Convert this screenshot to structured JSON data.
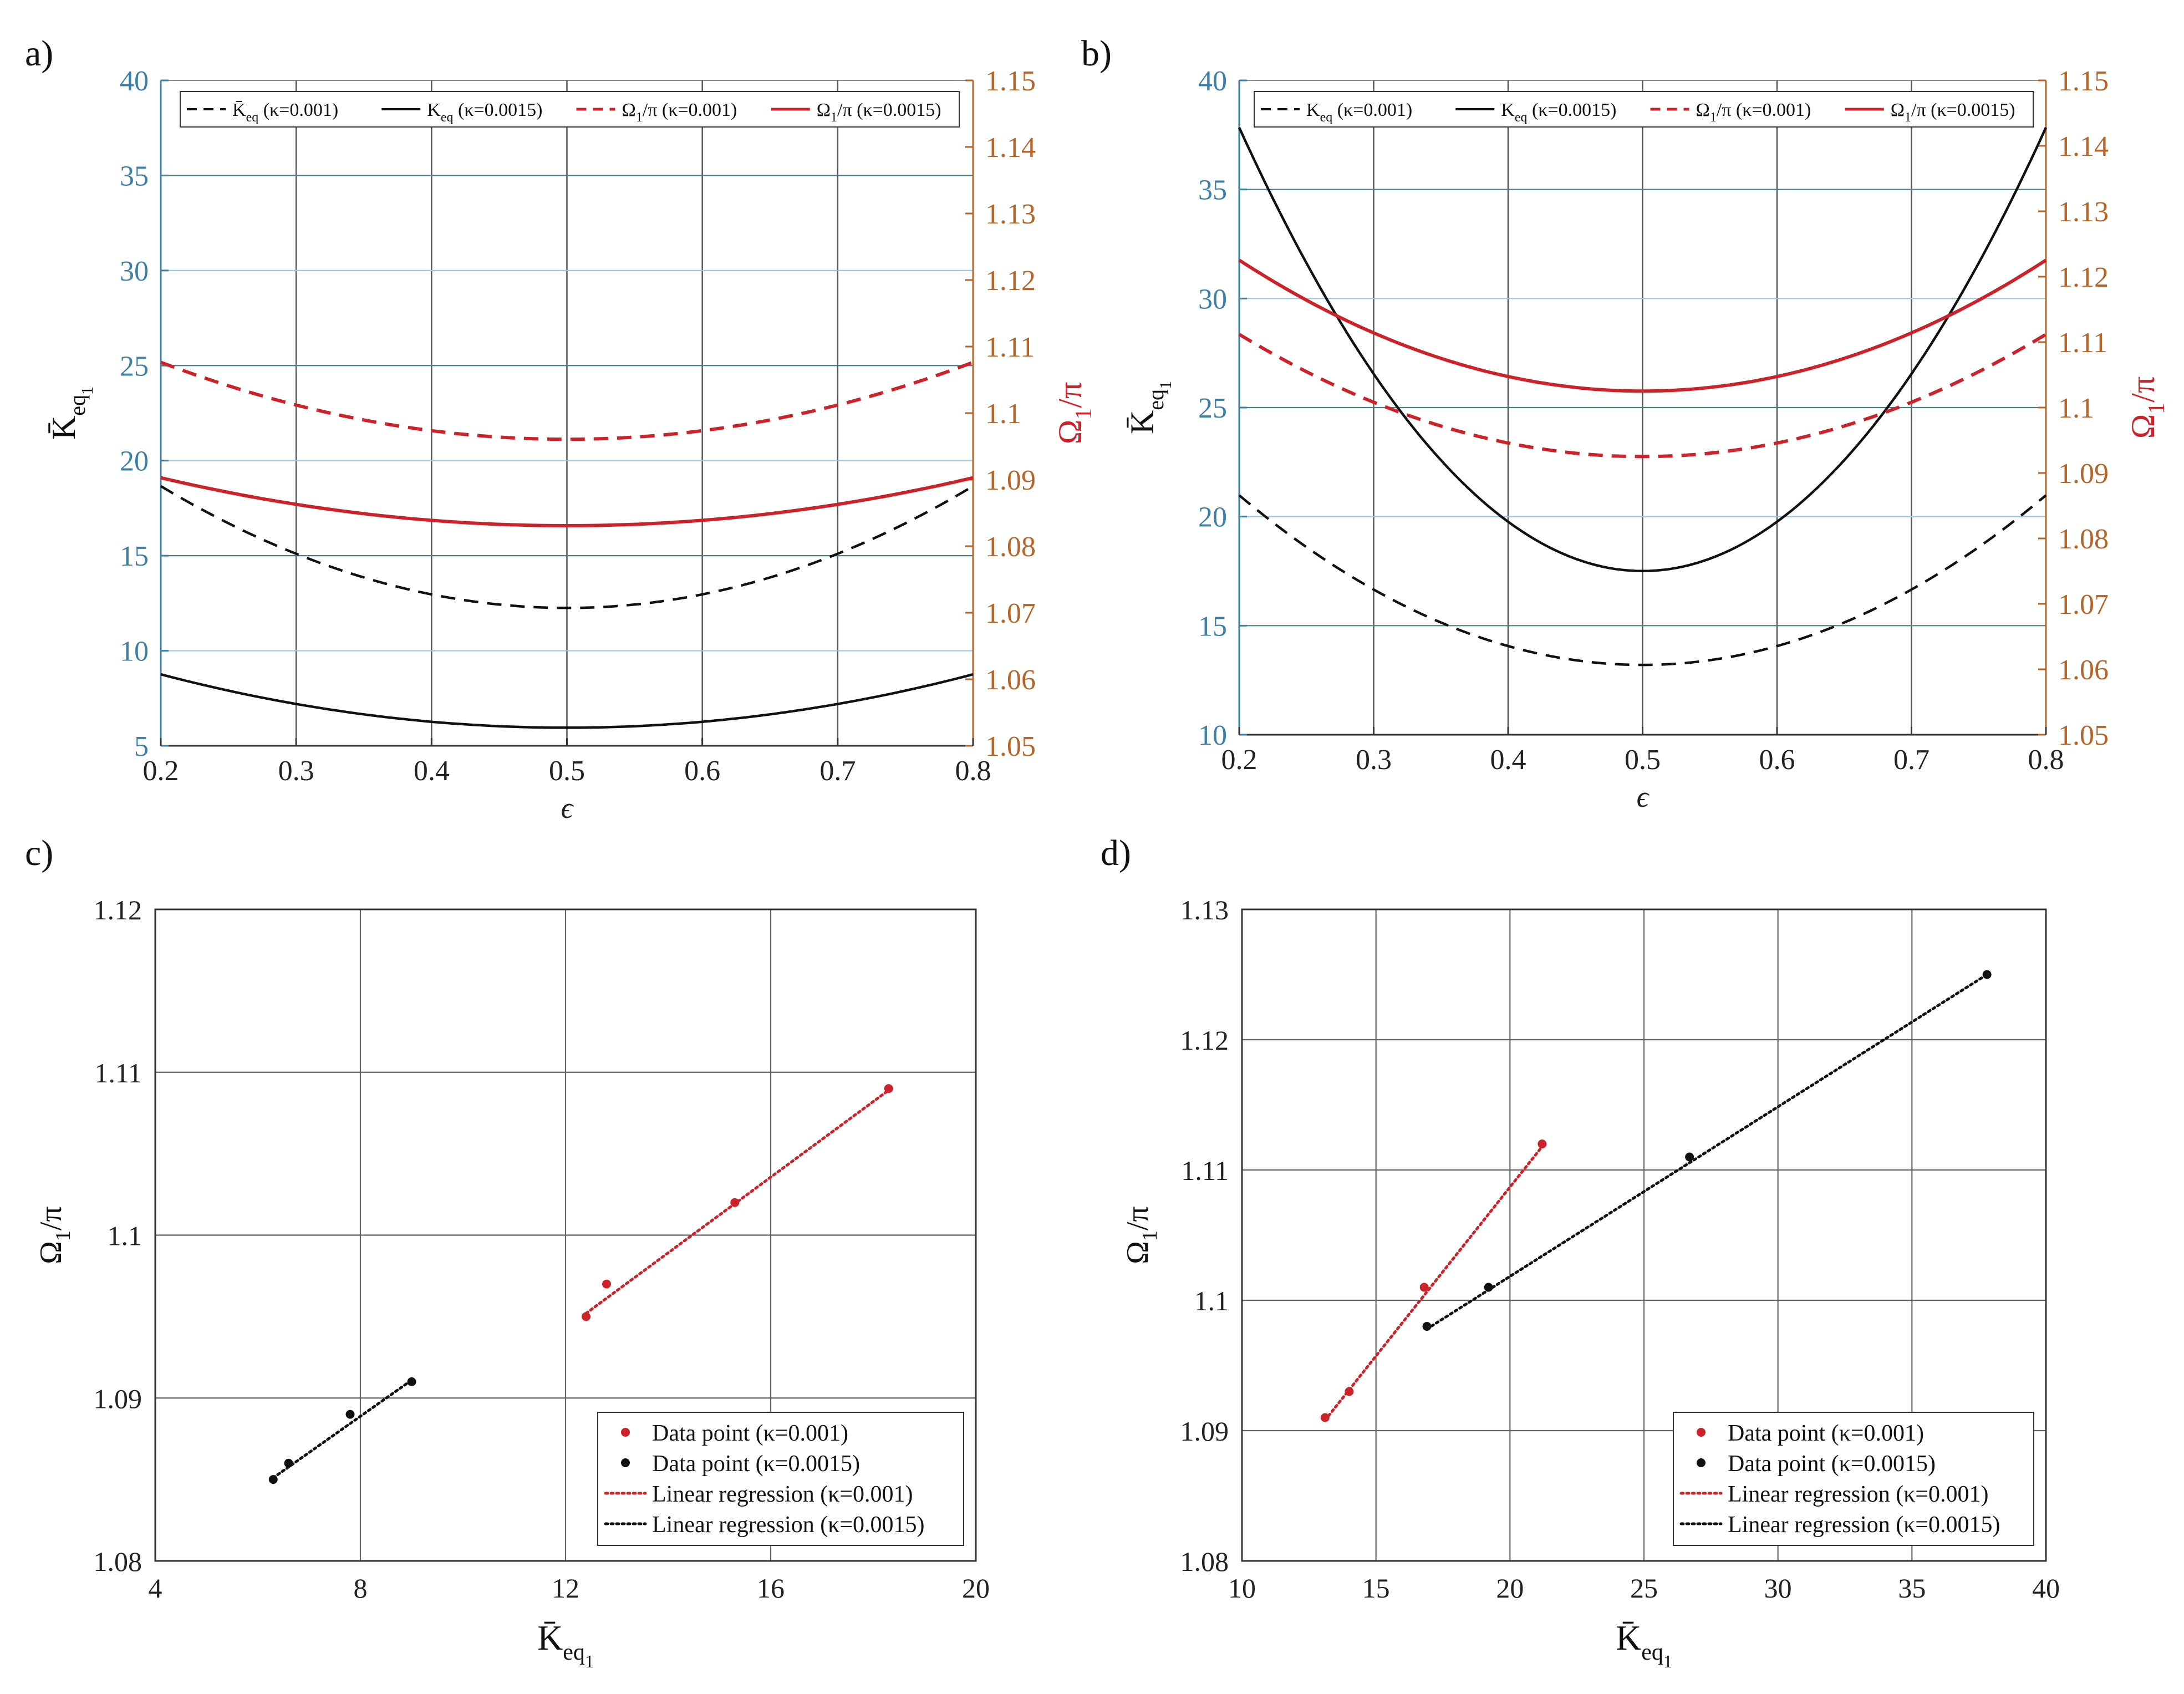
{
  "colors": {
    "red": "#cc2229",
    "black": "#111111",
    "blue_axis": "#3e7fa6",
    "orange_axis": "#b5652a",
    "grid_v": "#555555",
    "grid_h_dark": "#4a7f8a",
    "grid_h_light": "#9cc6e3"
  },
  "chart_data": [
    {
      "panel": "a",
      "panel_label": "a)",
      "type": "line",
      "xlabel": "ϵ",
      "ylabel_left": "K̄",
      "ylabel_left_sub": "eq",
      "ylabel_left_subsub": "1",
      "ylabel_right": "Ω",
      "ylabel_right_sub": "1",
      "ylabel_right_tail": "/π",
      "xlim": [
        0.2,
        0.8
      ],
      "xticks": [
        0.2,
        0.3,
        0.4,
        0.5,
        0.6,
        0.7,
        0.8
      ],
      "xtick_labels": [
        "0.2",
        "0.3",
        "0.4",
        "0.5",
        "0.6",
        "0.7",
        "0.8"
      ],
      "ylim_left": [
        5,
        40
      ],
      "yticks_left": [
        5,
        10,
        15,
        20,
        25,
        30,
        35,
        40
      ],
      "ytick_labels_left": [
        "5",
        "10",
        "15",
        "20",
        "25",
        "30",
        "35",
        "40"
      ],
      "ylim_right": [
        1.05,
        1.15
      ],
      "yticks_right": [
        1.05,
        1.06,
        1.07,
        1.08,
        1.09,
        1.1,
        1.11,
        1.12,
        1.13,
        1.14,
        1.15
      ],
      "ytick_labels_right": [
        "1.05",
        "1.06",
        "1.07",
        "1.08",
        "1.09",
        "1.1",
        "1.11",
        "1.12",
        "1.13",
        "1.14",
        "1.15"
      ],
      "legend": {
        "placement": "top",
        "entries": [
          {
            "main": "K̄",
            "sub": "eq",
            "tail": " (κ=0.001)",
            "style": "dashed",
            "color": "black"
          },
          {
            "main": "K",
            "sub": "eq",
            "tail": " (κ=0.0015)",
            "style": "solid",
            "color": "black"
          },
          {
            "main": "Ω",
            "sub": "1",
            "tail": "/π (κ=0.001)",
            "style": "dashed",
            "color": "red"
          },
          {
            "main": "Ω",
            "sub": "1",
            "tail": "/π (κ=0.0015)",
            "style": "solid",
            "color": "red"
          }
        ]
      },
      "series": [
        {
          "name": "K̄eq (κ=0.001)",
          "axis": "left",
          "style": "dashed",
          "color": "black",
          "x": [
            0.2,
            0.3,
            0.4,
            0.5,
            0.6,
            0.7,
            0.8
          ],
          "y": [
            18.7,
            15.0,
            13.0,
            12.3,
            13.0,
            15.0,
            18.7
          ]
        },
        {
          "name": "Keq (κ=0.0015)",
          "axis": "left",
          "style": "solid",
          "color": "black",
          "x": [
            0.2,
            0.3,
            0.4,
            0.5,
            0.6,
            0.7,
            0.8
          ],
          "y": [
            8.8,
            7.1,
            6.3,
            6.0,
            6.3,
            7.1,
            8.8
          ]
        },
        {
          "name": "Ω1/π (κ=0.001)",
          "axis": "right",
          "style": "dashed",
          "color": "red",
          "x": [
            0.2,
            0.3,
            0.4,
            0.5,
            0.6,
            0.7,
            0.8
          ],
          "y": [
            1.1075,
            1.1015,
            1.0975,
            1.0955,
            1.0975,
            1.1015,
            1.1075
          ]
        },
        {
          "name": "Ω1/π (κ=0.0015)",
          "axis": "right",
          "style": "solid",
          "color": "red",
          "x": [
            0.2,
            0.3,
            0.4,
            0.5,
            0.6,
            0.7,
            0.8
          ],
          "y": [
            1.0902,
            1.0865,
            1.0838,
            1.083,
            1.0838,
            1.0865,
            1.0902
          ]
        }
      ]
    },
    {
      "panel": "b",
      "panel_label": "b)",
      "type": "line",
      "xlabel": "ϵ",
      "ylabel_left": "K̄",
      "ylabel_left_sub": "eq",
      "ylabel_left_subsub": "1",
      "ylabel_right": "Ω",
      "ylabel_right_sub": "1",
      "ylabel_right_tail": "/π",
      "xlim": [
        0.2,
        0.8
      ],
      "xticks": [
        0.2,
        0.3,
        0.4,
        0.5,
        0.6,
        0.7,
        0.8
      ],
      "xtick_labels": [
        "0.2",
        "0.3",
        "0.4",
        "0.5",
        "0.6",
        "0.7",
        "0.8"
      ],
      "ylim_left": [
        10,
        40
      ],
      "yticks_left": [
        10,
        15,
        20,
        25,
        30,
        35,
        40
      ],
      "ytick_labels_left": [
        "10",
        "15",
        "20",
        "25",
        "30",
        "35",
        "40"
      ],
      "ylim_right": [
        1.05,
        1.15
      ],
      "yticks_right": [
        1.05,
        1.06,
        1.07,
        1.08,
        1.09,
        1.1,
        1.11,
        1.12,
        1.13,
        1.14,
        1.15
      ],
      "ytick_labels_right": [
        "1.05",
        "1.06",
        "1.07",
        "1.08",
        "1.09",
        "1.1",
        "1.11",
        "1.12",
        "1.13",
        "1.14",
        "1.15"
      ],
      "legend": {
        "placement": "top",
        "entries": [
          {
            "main": "K",
            "sub": "eq",
            "tail": " (κ=0.001)",
            "style": "dashed",
            "color": "black"
          },
          {
            "main": "K",
            "sub": "eq",
            "tail": " (κ=0.0015)",
            "style": "solid",
            "color": "black"
          },
          {
            "main": "Ω",
            "sub": "1",
            "tail": "/π (κ=0.001)",
            "style": "dashed",
            "color": "red"
          },
          {
            "main": "Ω",
            "sub": "1",
            "tail": "/π (κ=0.0015)",
            "style": "solid",
            "color": "red"
          }
        ]
      },
      "series": [
        {
          "name": "Keq (κ=0.001)",
          "axis": "left",
          "style": "dashed",
          "color": "black",
          "x": [
            0.2,
            0.3,
            0.4,
            0.5,
            0.6,
            0.7,
            0.8
          ],
          "y": [
            21.0,
            16.6,
            14.1,
            13.2,
            14.1,
            16.6,
            21.0
          ]
        },
        {
          "name": "Keq (κ=0.0015)",
          "axis": "left",
          "style": "solid",
          "color": "black",
          "x": [
            0.2,
            0.3,
            0.4,
            0.5,
            0.6,
            0.7,
            0.8
          ],
          "y": [
            37.8,
            26.6,
            19.9,
            17.2,
            19.9,
            26.6,
            37.8
          ]
        },
        {
          "name": "Ω1/π (κ=0.001)",
          "axis": "right",
          "style": "dashed",
          "color": "red",
          "x": [
            0.2,
            0.3,
            0.4,
            0.5,
            0.6,
            0.7,
            0.8
          ],
          "y": [
            1.1112,
            1.1008,
            1.0946,
            1.0925,
            1.0946,
            1.1008,
            1.1112
          ]
        },
        {
          "name": "Ω1/π (κ=0.0015)",
          "axis": "right",
          "style": "solid",
          "color": "red",
          "x": [
            0.2,
            0.3,
            0.4,
            0.5,
            0.6,
            0.7,
            0.8
          ],
          "y": [
            1.1225,
            1.1115,
            1.1047,
            1.1025,
            1.1047,
            1.1115,
            1.1225
          ]
        }
      ]
    },
    {
      "panel": "c",
      "panel_label": "c)",
      "type": "scatter",
      "xlabel": "K̄",
      "xlabel_sub": "eq",
      "xlabel_subsub": "1",
      "ylabel": "Ω",
      "ylabel_sub": "1",
      "ylabel_tail": "/π",
      "xlim": [
        4,
        20
      ],
      "xticks": [
        4,
        8,
        12,
        16,
        20
      ],
      "xtick_labels": [
        "4",
        "8",
        "12",
        "16",
        "20"
      ],
      "ylim": [
        1.08,
        1.12
      ],
      "yticks": [
        1.08,
        1.09,
        1.1,
        1.11,
        1.12
      ],
      "ytick_labels": [
        "1.08",
        "1.09",
        "1.1",
        "1.11",
        "1.12"
      ],
      "legend": {
        "placement": "bottom-right",
        "entries": [
          {
            "label": "Data point (κ=0.001)",
            "kind": "dot",
            "color": "red"
          },
          {
            "label": "Data point (κ=0.0015)",
            "kind": "dot",
            "color": "black"
          },
          {
            "label": "Linear regression (κ=0.001)",
            "kind": "dotted",
            "color": "red"
          },
          {
            "label": "Linear regression (κ=0.0015)",
            "kind": "dotted",
            "color": "black"
          }
        ]
      },
      "series": [
        {
          "name": "Data point (κ=0.001)",
          "kind": "points",
          "color": "red",
          "x": [
            12.4,
            12.8,
            15.3,
            18.3
          ],
          "y": [
            1.095,
            1.097,
            1.102,
            1.109
          ]
        },
        {
          "name": "Data point (κ=0.0015)",
          "kind": "points",
          "color": "black",
          "x": [
            6.3,
            6.6,
            7.8,
            9.0
          ],
          "y": [
            1.085,
            1.086,
            1.089,
            1.091
          ]
        },
        {
          "name": "Linear regression (κ=0.001)",
          "kind": "dotted",
          "color": "red",
          "x": [
            12.4,
            18.3
          ],
          "y": [
            1.0952,
            1.1089
          ]
        },
        {
          "name": "Linear regression (κ=0.0015)",
          "kind": "dotted",
          "color": "black",
          "x": [
            6.3,
            9.0
          ],
          "y": [
            1.0851,
            1.0911
          ]
        }
      ]
    },
    {
      "panel": "d",
      "panel_label": "d)",
      "type": "scatter",
      "xlabel": "K̄",
      "xlabel_sub": "eq",
      "xlabel_subsub": "1",
      "ylabel": "Ω",
      "ylabel_sub": "1",
      "ylabel_tail": "/π",
      "xlim": [
        10,
        40
      ],
      "xticks": [
        10,
        15,
        20,
        25,
        30,
        35,
        40
      ],
      "xtick_labels": [
        "10",
        "15",
        "20",
        "25",
        "30",
        "35",
        "40"
      ],
      "ylim": [
        1.08,
        1.13
      ],
      "yticks": [
        1.08,
        1.09,
        1.1,
        1.11,
        1.12,
        1.13
      ],
      "ytick_labels": [
        "1.08",
        "1.09",
        "1.1",
        "1.11",
        "1.12",
        "1.13"
      ],
      "legend": {
        "placement": "bottom-right",
        "entries": [
          {
            "label": "Data point (κ=0.001)",
            "kind": "dot",
            "color": "red"
          },
          {
            "label": "Data point (κ=0.0015)",
            "kind": "dot",
            "color": "black"
          },
          {
            "label": "Linear regression (κ=0.001)",
            "kind": "dotted",
            "color": "red"
          },
          {
            "label": "Linear regression (κ=0.0015)",
            "kind": "dotted",
            "color": "black"
          }
        ]
      },
      "series": [
        {
          "name": "Data point (κ=0.001)",
          "kind": "points",
          "color": "red",
          "x": [
            13.1,
            14.0,
            16.8,
            21.2
          ],
          "y": [
            1.091,
            1.093,
            1.101,
            1.112
          ]
        },
        {
          "name": "Data point (κ=0.0015)",
          "kind": "points",
          "color": "black",
          "x": [
            16.9,
            19.2,
            26.7,
            37.8
          ],
          "y": [
            1.098,
            1.101,
            1.111,
            1.125
          ]
        },
        {
          "name": "Linear regression (κ=0.001)",
          "kind": "dotted",
          "color": "red",
          "x": [
            13.1,
            21.2
          ],
          "y": [
            1.0908,
            1.1118
          ]
        },
        {
          "name": "Linear regression (κ=0.0015)",
          "kind": "dotted",
          "color": "black",
          "x": [
            16.9,
            37.8
          ],
          "y": [
            1.0978,
            1.125
          ]
        }
      ]
    }
  ]
}
